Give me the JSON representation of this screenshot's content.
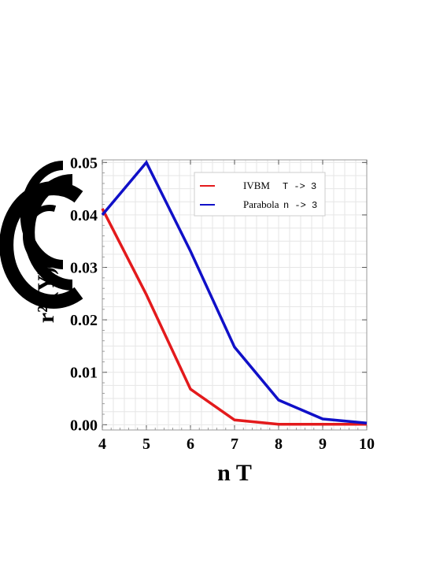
{
  "chart_data": {
    "type": "line",
    "x": [
      4,
      5,
      6,
      7,
      8,
      9,
      10
    ],
    "xticks": [
      4,
      5,
      6,
      7,
      8,
      9,
      10
    ],
    "yticks": [
      0.0,
      0.01,
      0.02,
      0.03,
      0.04,
      0.05
    ],
    "ytick_labels": [
      "0.00",
      "0.01",
      "0.02",
      "0.03",
      "0.04",
      "0.05"
    ],
    "xlim": [
      4,
      10
    ],
    "ylim": [
      -0.001,
      0.0505
    ],
    "xlabel": "n T",
    "ylabel": "r² (Y)",
    "grid": true,
    "legend_position": "top-right",
    "series": [
      {
        "name": "IVBM",
        "name_suffix": "T -> 3",
        "color": "#e31a1c",
        "values": [
          0.0412,
          0.0248,
          0.0068,
          0.0009,
          0.0001,
          0.0001,
          0.0001
        ]
      },
      {
        "name": "Parabola",
        "name_suffix": "n -> 3",
        "color": "#1010c8",
        "values": [
          0.04,
          0.05,
          0.0331,
          0.0148,
          0.0047,
          0.0011,
          0.0003
        ]
      }
    ]
  }
}
